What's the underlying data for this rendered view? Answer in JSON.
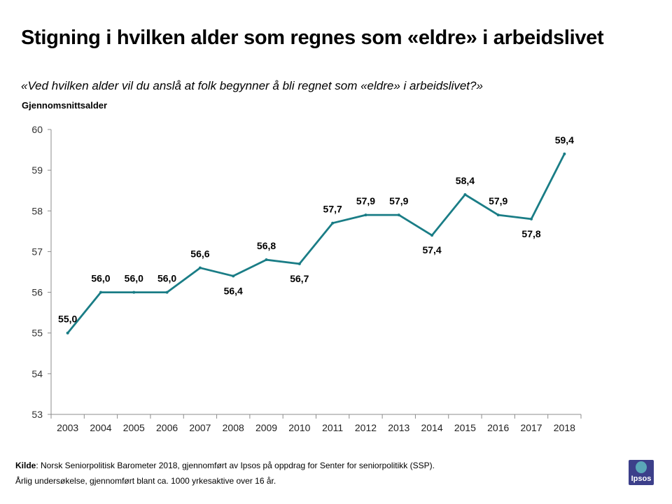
{
  "header": {
    "title": "Stigning i hvilken alder som regnes som «eldre» i arbeidslivet",
    "subtitle": "«Ved hvilken alder vil du anslå at folk begynner å bli regnet som «eldre» i arbeidslivet?»"
  },
  "footer": {
    "source_label": "Kilde",
    "source_text": ": Norsk Seniorpolitisk Barometer 2018, gjennomført av Ipsos på oppdrag for Senter for seniorpolitikk (SSP).",
    "note": "Årlig undersøkelse, gjennomført blant ca. 1000 yrkesaktive over 16 år."
  },
  "logo": {
    "text": "Ipsos",
    "color": "#3c3f8a",
    "accent": "#5aa7b8"
  },
  "chart_data": {
    "type": "line",
    "title": "Stigning i hvilken alder som regnes som «eldre» i arbeidslivet",
    "xlabel": "",
    "ylabel": "Gjennomsnittsalder",
    "ylim": [
      53,
      60
    ],
    "yticks": [
      "53",
      "54",
      "55",
      "56",
      "57",
      "58",
      "59",
      "60"
    ],
    "grid": false,
    "line_color": "#1a7d86",
    "categories": [
      "2003",
      "2004",
      "2005",
      "2006",
      "2007",
      "2008",
      "2009",
      "2010",
      "2011",
      "2012",
      "2013",
      "2014",
      "2015",
      "2016",
      "2017",
      "2018"
    ],
    "values": [
      55.0,
      56.0,
      56.0,
      56.0,
      56.6,
      56.4,
      56.8,
      56.7,
      57.7,
      57.9,
      57.9,
      57.4,
      58.4,
      57.9,
      57.8,
      59.4
    ],
    "data_labels": [
      "55,0",
      "56,0",
      "56,0",
      "56,0",
      "56,6",
      "56,4",
      "56,8",
      "56,7",
      "57,7",
      "57,9",
      "57,9",
      "57,4",
      "58,4",
      "57,9",
      "57,8",
      "59,4"
    ]
  }
}
